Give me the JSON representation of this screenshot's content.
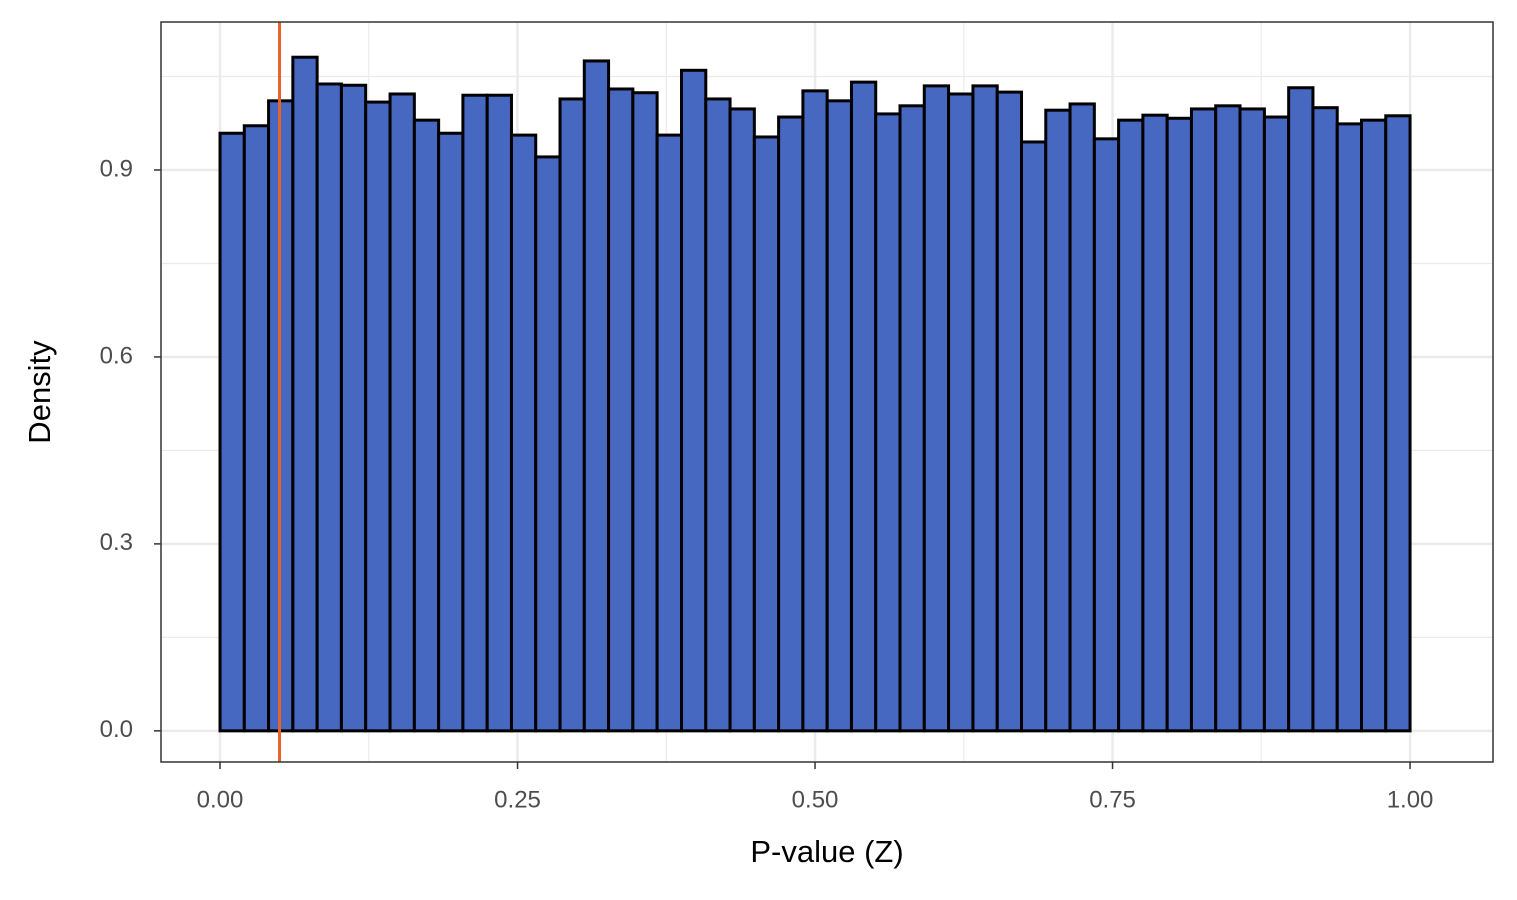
{
  "chart_data": {
    "type": "histogram",
    "x_label": "P-value (Z)",
    "y_label": "Density",
    "bins": [
      0,
      0.0204,
      0.0408,
      0.0612,
      0.0816,
      0.102,
      0.1224,
      0.1429,
      0.1633,
      0.1837,
      0.2041,
      0.2245,
      0.2449,
      0.2653,
      0.2857,
      0.3061,
      0.3265,
      0.3469,
      0.3673,
      0.3878,
      0.4082,
      0.4286,
      0.449,
      0.4694,
      0.4898,
      0.5102,
      0.5306,
      0.551,
      0.5714,
      0.5918,
      0.6122,
      0.6327,
      0.6531,
      0.6735,
      0.6939,
      0.7143,
      0.7347,
      0.7551,
      0.7755,
      0.7959,
      0.8163,
      0.8367,
      0.8571,
      0.8776,
      0.898,
      0.9184,
      0.9388,
      0.9592,
      0.9796,
      1.0,
      1.0204
    ],
    "values": [
      0.959,
      0.971,
      1.011,
      1.081,
      1.038,
      1.036,
      1.009,
      1.022,
      0.98,
      0.959,
      1.02,
      1.02,
      0.956,
      0.921,
      1.014,
      1.075,
      1.03,
      1.024,
      0.956,
      1.06,
      1.014,
      0.998,
      0.953,
      0.985,
      1.027,
      1.011,
      1.041,
      0.99,
      1.003,
      1.035,
      1.022,
      1.035,
      1.025,
      0.945,
      0.996,
      1.006,
      0.95,
      0.98,
      0.988,
      0.983,
      0.998,
      1.003,
      0.998,
      0.985,
      1.032,
      1.0,
      0.974,
      0.98,
      0.987,
      0
    ],
    "color": "#4668c0",
    "edge_color": "#000000",
    "vline": {
      "x": 0.05,
      "color": "#e8632a"
    },
    "xlim": [
      -0.0496,
      1.0697
    ],
    "ylim": [
      -0.05,
      1.1375
    ],
    "xticks": [
      {
        "value": 0,
        "label": "0.00"
      },
      {
        "value": 0.25,
        "label": "0.25"
      },
      {
        "value": 0.5,
        "label": "0.50"
      },
      {
        "value": 0.75,
        "label": "0.75"
      },
      {
        "value": 1,
        "label": "1.00"
      }
    ],
    "yticks": [
      {
        "value": 0,
        "label": "0.0"
      },
      {
        "value": 0.3,
        "label": "0.3"
      },
      {
        "value": 0.6,
        "label": "0.6"
      },
      {
        "value": 0.9,
        "label": "0.9"
      }
    ],
    "x_minor_ticks": [
      0.125,
      0.375,
      0.625,
      0.875
    ],
    "y_minor_ticks": [
      0.15,
      0.45,
      0.75,
      1.05
    ],
    "grid": true
  }
}
